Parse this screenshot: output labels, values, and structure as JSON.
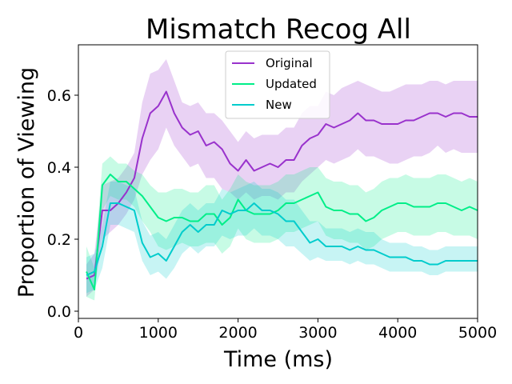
{
  "chart_data": {
    "type": "line",
    "title": "Mismatch Recog All",
    "xlabel": "Time (ms)",
    "ylabel": "Proportion of Viewing",
    "xlim": [
      0,
      5000
    ],
    "ylim": [
      -0.02,
      0.74
    ],
    "xticks": [
      0,
      1000,
      2000,
      3000,
      4000,
      5000
    ],
    "yticks": [
      0.0,
      0.2,
      0.4,
      0.6
    ],
    "xtick_labels": [
      "0",
      "1000",
      "2000",
      "3000",
      "4000",
      "5000"
    ],
    "ytick_labels": [
      "0.0",
      "0.2",
      "0.4",
      "0.6"
    ],
    "grid": false,
    "legend_position": "top-center",
    "shaded_band": true,
    "x": [
      100,
      200,
      300,
      400,
      500,
      600,
      700,
      800,
      900,
      1000,
      1100,
      1200,
      1300,
      1400,
      1500,
      1600,
      1700,
      1800,
      1900,
      2000,
      2100,
      2200,
      2300,
      2400,
      2500,
      2600,
      2700,
      2800,
      2900,
      3000,
      3100,
      3200,
      3300,
      3400,
      3500,
      3600,
      3700,
      3800,
      3900,
      4000,
      4100,
      4200,
      4300,
      4400,
      4500,
      4600,
      4700,
      4800,
      4900,
      5000
    ],
    "series": [
      {
        "name": "Original",
        "color": "#9932CC",
        "values": [
          0.09,
          0.1,
          0.28,
          0.28,
          0.3,
          0.33,
          0.37,
          0.48,
          0.55,
          0.57,
          0.61,
          0.55,
          0.51,
          0.49,
          0.5,
          0.46,
          0.47,
          0.45,
          0.41,
          0.39,
          0.42,
          0.39,
          0.4,
          0.41,
          0.4,
          0.42,
          0.42,
          0.46,
          0.48,
          0.49,
          0.52,
          0.51,
          0.52,
          0.53,
          0.55,
          0.53,
          0.53,
          0.52,
          0.52,
          0.52,
          0.53,
          0.53,
          0.54,
          0.55,
          0.55,
          0.54,
          0.55,
          0.55,
          0.54,
          0.54
        ],
        "lower": [
          0.04,
          0.06,
          0.2,
          0.22,
          0.24,
          0.27,
          0.31,
          0.38,
          0.42,
          0.45,
          0.51,
          0.46,
          0.43,
          0.4,
          0.41,
          0.37,
          0.37,
          0.34,
          0.33,
          0.31,
          0.33,
          0.31,
          0.32,
          0.32,
          0.31,
          0.33,
          0.33,
          0.36,
          0.38,
          0.4,
          0.42,
          0.41,
          0.42,
          0.43,
          0.45,
          0.43,
          0.43,
          0.42,
          0.41,
          0.41,
          0.42,
          0.43,
          0.43,
          0.44,
          0.46,
          0.44,
          0.45,
          0.44,
          0.44,
          0.44
        ],
        "upper": [
          0.13,
          0.16,
          0.35,
          0.36,
          0.37,
          0.4,
          0.44,
          0.58,
          0.66,
          0.67,
          0.7,
          0.64,
          0.58,
          0.57,
          0.58,
          0.55,
          0.55,
          0.53,
          0.5,
          0.47,
          0.5,
          0.48,
          0.49,
          0.49,
          0.49,
          0.51,
          0.51,
          0.55,
          0.57,
          0.57,
          0.61,
          0.6,
          0.62,
          0.63,
          0.64,
          0.63,
          0.62,
          0.61,
          0.61,
          0.62,
          0.63,
          0.63,
          0.63,
          0.64,
          0.64,
          0.63,
          0.64,
          0.64,
          0.64,
          0.64
        ]
      },
      {
        "name": "Updated",
        "color": "#00EE88",
        "values": [
          0.11,
          0.06,
          0.35,
          0.38,
          0.36,
          0.36,
          0.34,
          0.32,
          0.29,
          0.26,
          0.25,
          0.26,
          0.26,
          0.25,
          0.25,
          0.27,
          0.27,
          0.24,
          0.26,
          0.31,
          0.28,
          0.27,
          0.27,
          0.27,
          0.28,
          0.3,
          0.3,
          0.31,
          0.32,
          0.33,
          0.29,
          0.28,
          0.28,
          0.27,
          0.27,
          0.25,
          0.26,
          0.28,
          0.29,
          0.3,
          0.3,
          0.29,
          0.29,
          0.29,
          0.3,
          0.3,
          0.29,
          0.28,
          0.29,
          0.28
        ],
        "lower": [
          0.04,
          0.03,
          0.28,
          0.32,
          0.31,
          0.31,
          0.29,
          0.25,
          0.22,
          0.18,
          0.17,
          0.18,
          0.19,
          0.18,
          0.18,
          0.19,
          0.19,
          0.16,
          0.18,
          0.23,
          0.2,
          0.19,
          0.19,
          0.19,
          0.2,
          0.22,
          0.22,
          0.23,
          0.24,
          0.25,
          0.21,
          0.2,
          0.2,
          0.19,
          0.19,
          0.17,
          0.18,
          0.2,
          0.21,
          0.22,
          0.22,
          0.21,
          0.21,
          0.21,
          0.22,
          0.22,
          0.21,
          0.21,
          0.21,
          0.2
        ],
        "upper": [
          0.18,
          0.12,
          0.41,
          0.43,
          0.41,
          0.41,
          0.39,
          0.38,
          0.35,
          0.33,
          0.33,
          0.34,
          0.34,
          0.33,
          0.33,
          0.35,
          0.35,
          0.31,
          0.34,
          0.38,
          0.36,
          0.35,
          0.35,
          0.35,
          0.36,
          0.38,
          0.38,
          0.39,
          0.4,
          0.4,
          0.37,
          0.36,
          0.36,
          0.35,
          0.35,
          0.33,
          0.34,
          0.36,
          0.37,
          0.37,
          0.38,
          0.37,
          0.37,
          0.37,
          0.38,
          0.38,
          0.37,
          0.36,
          0.37,
          0.36
        ]
      },
      {
        "name": "New",
        "color": "#00CCCC",
        "values": [
          0.1,
          0.11,
          0.18,
          0.3,
          0.3,
          0.29,
          0.28,
          0.19,
          0.15,
          0.16,
          0.14,
          0.18,
          0.22,
          0.24,
          0.22,
          0.24,
          0.24,
          0.28,
          0.27,
          0.28,
          0.28,
          0.3,
          0.28,
          0.28,
          0.27,
          0.25,
          0.25,
          0.22,
          0.19,
          0.2,
          0.18,
          0.18,
          0.18,
          0.17,
          0.18,
          0.17,
          0.17,
          0.16,
          0.15,
          0.15,
          0.15,
          0.14,
          0.14,
          0.13,
          0.13,
          0.14,
          0.14,
          0.14,
          0.14,
          0.14
        ],
        "lower": [
          0.05,
          0.06,
          0.12,
          0.24,
          0.24,
          0.23,
          0.22,
          0.14,
          0.1,
          0.11,
          0.09,
          0.12,
          0.16,
          0.18,
          0.16,
          0.18,
          0.18,
          0.21,
          0.2,
          0.21,
          0.21,
          0.23,
          0.21,
          0.21,
          0.2,
          0.18,
          0.18,
          0.16,
          0.14,
          0.15,
          0.14,
          0.14,
          0.14,
          0.13,
          0.14,
          0.13,
          0.13,
          0.12,
          0.11,
          0.11,
          0.11,
          0.11,
          0.11,
          0.1,
          0.1,
          0.11,
          0.11,
          0.11,
          0.11,
          0.11
        ],
        "upper": [
          0.15,
          0.16,
          0.24,
          0.36,
          0.36,
          0.35,
          0.34,
          0.25,
          0.21,
          0.22,
          0.2,
          0.24,
          0.28,
          0.3,
          0.28,
          0.3,
          0.3,
          0.34,
          0.33,
          0.34,
          0.35,
          0.36,
          0.34,
          0.34,
          0.33,
          0.31,
          0.31,
          0.28,
          0.25,
          0.25,
          0.23,
          0.23,
          0.23,
          0.22,
          0.23,
          0.22,
          0.22,
          0.2,
          0.19,
          0.19,
          0.19,
          0.18,
          0.18,
          0.17,
          0.17,
          0.18,
          0.18,
          0.18,
          0.18,
          0.18
        ]
      }
    ]
  }
}
